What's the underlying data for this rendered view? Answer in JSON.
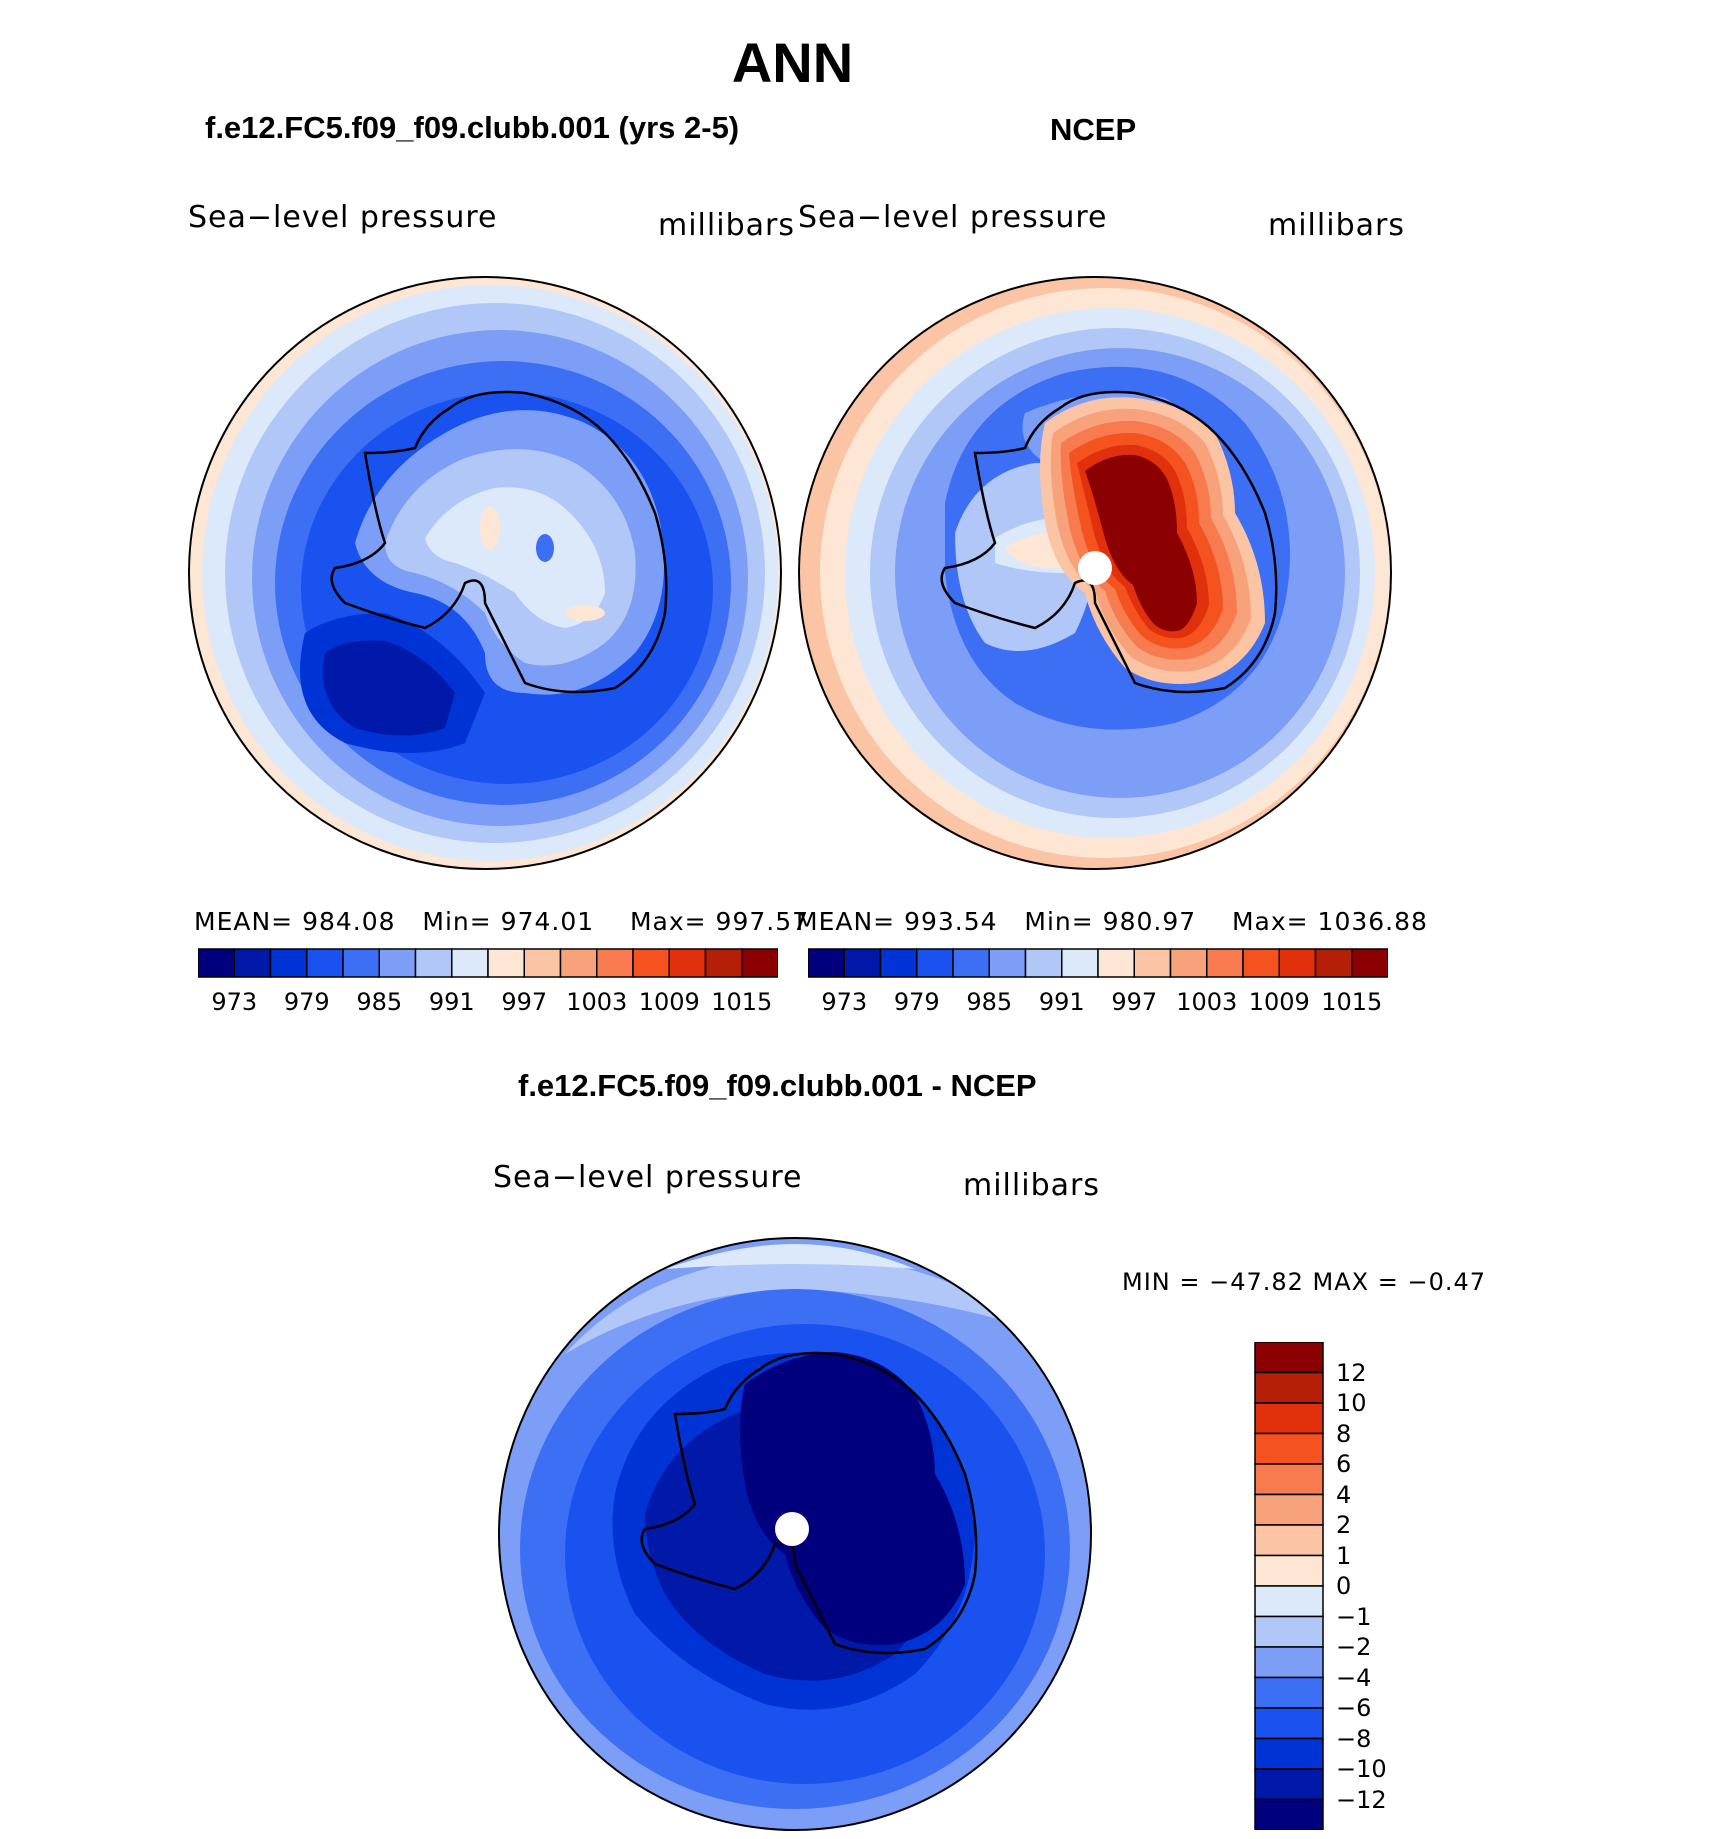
{
  "figure": {
    "title": "ANN"
  },
  "panels": [
    {
      "id": "model",
      "title": "f.e12.FC5.f09_f09.clubb.001 (yrs 2-5)",
      "variable": "Sea−level pressure",
      "units": "millibars",
      "stats": {
        "mean_label": "MEAN=",
        "mean": "984.08",
        "min_label": "Min=",
        "min": "974.01",
        "max_label": "Max=",
        "max": "997.57"
      }
    },
    {
      "id": "obs",
      "title": "NCEP",
      "variable": "Sea−level pressure",
      "units": "millibars",
      "stats": {
        "mean_label": "MEAN=",
        "mean": "993.54",
        "min_label": "Min=",
        "min": "980.97",
        "max_label": "Max=",
        "max": "1036.88"
      }
    },
    {
      "id": "diff",
      "title": "f.e12.FC5.f09_f09.clubb.001 - NCEP",
      "variable": "Sea−level pressure",
      "units": "millibars",
      "stats_text": "MIN = −47.82 MAX =  −0.47"
    }
  ],
  "chart_data": [
    {
      "type": "contour-map",
      "projection": "south-polar-stereographic",
      "title": "f.e12.FC5.f09_f09.clubb.001 (yrs 2-5)",
      "variable": "Sea−level pressure",
      "units": "millibars",
      "levels": [
        973,
        976,
        979,
        982,
        985,
        988,
        991,
        994,
        997,
        1000,
        1003,
        1006,
        1009,
        1012,
        1015
      ],
      "colorbar_tick_labels": [
        "973",
        "979",
        "985",
        "991",
        "997",
        "1003",
        "1009",
        "1015"
      ],
      "mean": 984.08,
      "min": 974.01,
      "max": 997.57
    },
    {
      "type": "contour-map",
      "projection": "south-polar-stereographic",
      "title": "NCEP",
      "variable": "Sea−level pressure",
      "units": "millibars",
      "levels": [
        973,
        976,
        979,
        982,
        985,
        988,
        991,
        994,
        997,
        1000,
        1003,
        1006,
        1009,
        1012,
        1015
      ],
      "colorbar_tick_labels": [
        "973",
        "979",
        "985",
        "991",
        "997",
        "1003",
        "1009",
        "1015"
      ],
      "mean": 993.54,
      "min": 980.97,
      "max": 1036.88
    },
    {
      "type": "contour-map",
      "projection": "south-polar-stereographic",
      "title": "f.e12.FC5.f09_f09.clubb.001 - NCEP",
      "variable": "Sea−level pressure",
      "units": "millibars",
      "levels": [
        -12,
        -10,
        -8,
        -6,
        -4,
        -2,
        -1,
        0,
        1,
        2,
        4,
        6,
        8,
        10,
        12
      ],
      "colorbar_tick_labels": [
        "12",
        "10",
        "8",
        "6",
        "4",
        "2",
        "1",
        "0",
        "−1",
        "−2",
        "−4",
        "−6",
        "−8",
        "−10",
        "−12"
      ],
      "min": -47.82,
      "max": -0.47
    }
  ],
  "colors": {
    "abs_palette": [
      "#00007f",
      "#0019a8",
      "#0033d6",
      "#1a52f0",
      "#3d6ff5",
      "#7d9ef7",
      "#b0c7f7",
      "#dce9fb",
      "#fde6d4",
      "#fbc5a5",
      "#f8a27c",
      "#f77b4e",
      "#f4521e",
      "#e0310c",
      "#b51e07",
      "#8b0000"
    ],
    "diff_palette": [
      "#00007f",
      "#0019a8",
      "#0033d6",
      "#1a52f0",
      "#3d6ff5",
      "#7d9ef7",
      "#b0c7f7",
      "#dce9fb",
      "#fde6d4",
      "#fbc5a5",
      "#f8a27c",
      "#f77b4e",
      "#f4521e",
      "#e0310c",
      "#b51e07",
      "#8b0000"
    ]
  }
}
